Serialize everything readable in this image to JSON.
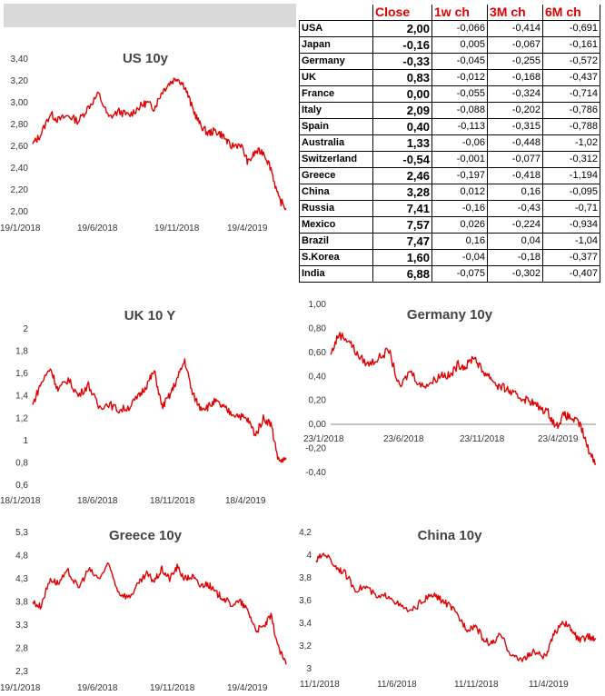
{
  "table": {
    "headers": [
      "",
      "Close",
      "1w ch",
      "3M ch",
      "6M ch"
    ],
    "rows": [
      {
        "country": "USA",
        "close": "2,00",
        "w1": "-0,066",
        "m3": "-0,414",
        "m6": "-0,691"
      },
      {
        "country": "Japan",
        "close": "-0,16",
        "w1": "0,005",
        "m3": "-0,067",
        "m6": "-0,161"
      },
      {
        "country": "Germany",
        "close": "-0,33",
        "w1": "-0,045",
        "m3": "-0,255",
        "m6": "-0,572"
      },
      {
        "country": "UK",
        "close": "0,83",
        "w1": "-0,012",
        "m3": "-0,168",
        "m6": "-0,437"
      },
      {
        "country": "France",
        "close": "0,00",
        "w1": "-0,055",
        "m3": "-0,324",
        "m6": "-0,714"
      },
      {
        "country": "Italy",
        "close": "2,09",
        "w1": "-0,088",
        "m3": "-0,202",
        "m6": "-0,786"
      },
      {
        "country": "Spain",
        "close": "0,40",
        "w1": "-0,113",
        "m3": "-0,315",
        "m6": "-0,788"
      },
      {
        "country": "Australia",
        "close": "1,33",
        "w1": "-0,06",
        "m3": "-0,448",
        "m6": "-1,02"
      },
      {
        "country": "Switzerland",
        "close": "-0,54",
        "w1": "-0,001",
        "m3": "-0,077",
        "m6": "-0,312"
      },
      {
        "country": "Greece",
        "close": "2,46",
        "w1": "-0,197",
        "m3": "-0,418",
        "m6": "-1,194"
      },
      {
        "country": "China",
        "close": "3,28",
        "w1": "0,012",
        "m3": "0,16",
        "m6": "-0,095"
      },
      {
        "country": "Russia",
        "close": "7,41",
        "w1": "-0,16",
        "m3": "-0,43",
        "m6": "-0,71"
      },
      {
        "country": "Mexico",
        "close": "7,57",
        "w1": "0,026",
        "m3": "-0,224",
        "m6": "-0,934"
      },
      {
        "country": "Brazil",
        "close": "7,47",
        "w1": "0,16",
        "m3": "0,04",
        "m6": "-1,04"
      },
      {
        "country": "S.Korea",
        "close": "1,60",
        "w1": "-0,04",
        "m3": "-0,18",
        "m6": "-0,377"
      },
      {
        "country": "India",
        "close": "6,88",
        "w1": "-0,075",
        "m3": "-0,302",
        "m6": "-0,407"
      }
    ]
  },
  "chart_data": [
    {
      "type": "line",
      "title": "US 10y",
      "ylim": [
        2.0,
        3.4
      ],
      "ytick_labels": [
        "2,00",
        "2,20",
        "2,40",
        "2,60",
        "2,80",
        "3,00",
        "3,20",
        "3,40"
      ],
      "xtick_labels": [
        "19/1/2018",
        "19/6/2018",
        "19/11/2018",
        "19/4/2019"
      ],
      "x": [
        0,
        0.03,
        0.07,
        0.1,
        0.14,
        0.18,
        0.22,
        0.26,
        0.3,
        0.34,
        0.38,
        0.42,
        0.45,
        0.48,
        0.51,
        0.54,
        0.57,
        0.6,
        0.63,
        0.66,
        0.69,
        0.72,
        0.75,
        0.78,
        0.82,
        0.85,
        0.88,
        0.91,
        0.94,
        0.97,
        1.0
      ],
      "series": [
        {
          "values": [
            2.62,
            2.7,
            2.9,
            2.84,
            2.88,
            2.83,
            2.96,
            3.08,
            2.86,
            2.92,
            2.88,
            2.96,
            3.0,
            2.95,
            3.1,
            3.18,
            3.23,
            3.15,
            2.95,
            2.8,
            2.72,
            2.74,
            2.7,
            2.6,
            2.62,
            2.45,
            2.55,
            2.55,
            2.4,
            2.12,
            2.03
          ],
          "color": "#e00000"
        }
      ]
    },
    {
      "type": "line",
      "title": "UK 10 Y",
      "ylim": [
        0.6,
        2.0
      ],
      "ytick_labels": [
        "0,6",
        "0,8",
        "1",
        "1,2",
        "1,4",
        "1,6",
        "1,8",
        "2"
      ],
      "xtick_labels": [
        "18/1/2018",
        "18/6/2018",
        "18/11/2018",
        "18/4/2019"
      ],
      "x": [
        0,
        0.03,
        0.07,
        0.1,
        0.14,
        0.18,
        0.22,
        0.26,
        0.3,
        0.34,
        0.38,
        0.42,
        0.45,
        0.48,
        0.51,
        0.54,
        0.57,
        0.6,
        0.63,
        0.66,
        0.69,
        0.72,
        0.75,
        0.78,
        0.82,
        0.85,
        0.88,
        0.91,
        0.94,
        0.97,
        1.0
      ],
      "series": [
        {
          "values": [
            1.32,
            1.5,
            1.65,
            1.45,
            1.55,
            1.4,
            1.5,
            1.3,
            1.33,
            1.27,
            1.3,
            1.4,
            1.5,
            1.62,
            1.3,
            1.4,
            1.55,
            1.72,
            1.42,
            1.3,
            1.3,
            1.35,
            1.3,
            1.25,
            1.22,
            1.18,
            1.05,
            1.2,
            1.15,
            0.82,
            0.83
          ],
          "color": "#e00000"
        }
      ]
    },
    {
      "type": "line",
      "title": "Germany 10y",
      "ylim": [
        -0.4,
        1.0
      ],
      "ytick_labels": [
        "-0,40",
        "-0,20",
        "0,00",
        "0,20",
        "0,40",
        "0,60",
        "0,80",
        "1,00"
      ],
      "xtick_labels": [
        "23/1/2018",
        "23/6/2018",
        "23/11/2018",
        "23/4/2019"
      ],
      "x": [
        0,
        0.03,
        0.07,
        0.1,
        0.14,
        0.18,
        0.22,
        0.26,
        0.3,
        0.34,
        0.38,
        0.42,
        0.45,
        0.48,
        0.51,
        0.54,
        0.57,
        0.6,
        0.63,
        0.66,
        0.69,
        0.72,
        0.75,
        0.78,
        0.82,
        0.85,
        0.88,
        0.91,
        0.94,
        0.97,
        1.0
      ],
      "series": [
        {
          "values": [
            0.58,
            0.75,
            0.7,
            0.58,
            0.5,
            0.55,
            0.62,
            0.3,
            0.45,
            0.32,
            0.35,
            0.42,
            0.4,
            0.5,
            0.48,
            0.57,
            0.45,
            0.4,
            0.32,
            0.3,
            0.25,
            0.22,
            0.2,
            0.15,
            0.1,
            -0.02,
            0.08,
            0.05,
            0.0,
            -0.2,
            -0.33
          ],
          "color": "#e00000"
        }
      ]
    },
    {
      "type": "line",
      "title": "Greece 10y",
      "ylim": [
        2.3,
        5.3
      ],
      "ytick_labels": [
        "2,3",
        "2,8",
        "3,3",
        "3,8",
        "4,3",
        "4,8",
        "5,3"
      ],
      "xtick_labels": [
        "19/1/2018",
        "19/6/2018",
        "19/11/2018",
        "19/4/2019"
      ],
      "x": [
        0,
        0.03,
        0.07,
        0.1,
        0.14,
        0.18,
        0.22,
        0.26,
        0.3,
        0.34,
        0.38,
        0.42,
        0.45,
        0.48,
        0.51,
        0.54,
        0.57,
        0.6,
        0.63,
        0.66,
        0.69,
        0.72,
        0.75,
        0.78,
        0.82,
        0.85,
        0.88,
        0.91,
        0.94,
        0.97,
        1.0
      ],
      "series": [
        {
          "values": [
            3.8,
            3.7,
            4.3,
            4.2,
            4.45,
            4.1,
            4.5,
            4.3,
            4.6,
            4.0,
            3.9,
            4.2,
            4.4,
            4.25,
            4.5,
            4.3,
            4.55,
            4.3,
            4.35,
            4.15,
            4.2,
            4.0,
            3.9,
            3.75,
            3.8,
            3.6,
            3.2,
            3.25,
            3.5,
            2.8,
            2.45
          ],
          "color": "#e00000"
        }
      ]
    },
    {
      "type": "line",
      "title": "China 10y",
      "ylim": [
        3.0,
        4.2
      ],
      "ytick_labels": [
        "3",
        "3,2",
        "3,4",
        "3,6",
        "3,8",
        "4",
        "4,2"
      ],
      "xtick_labels": [
        "11/1/2018",
        "11/6/2018",
        "11/11/2018",
        "11/4/2019"
      ],
      "x": [
        0,
        0.03,
        0.07,
        0.1,
        0.14,
        0.18,
        0.22,
        0.26,
        0.3,
        0.34,
        0.38,
        0.42,
        0.45,
        0.48,
        0.51,
        0.54,
        0.57,
        0.6,
        0.63,
        0.66,
        0.69,
        0.72,
        0.75,
        0.78,
        0.82,
        0.85,
        0.88,
        0.91,
        0.94,
        0.97,
        1.0
      ],
      "series": [
        {
          "values": [
            3.95,
            4.02,
            3.9,
            3.85,
            3.7,
            3.72,
            3.62,
            3.65,
            3.55,
            3.5,
            3.6,
            3.65,
            3.6,
            3.55,
            3.45,
            3.35,
            3.38,
            3.25,
            3.22,
            3.3,
            3.15,
            3.08,
            3.1,
            3.15,
            3.1,
            3.3,
            3.42,
            3.35,
            3.25,
            3.28,
            3.27
          ],
          "color": "#e00000"
        }
      ]
    }
  ]
}
